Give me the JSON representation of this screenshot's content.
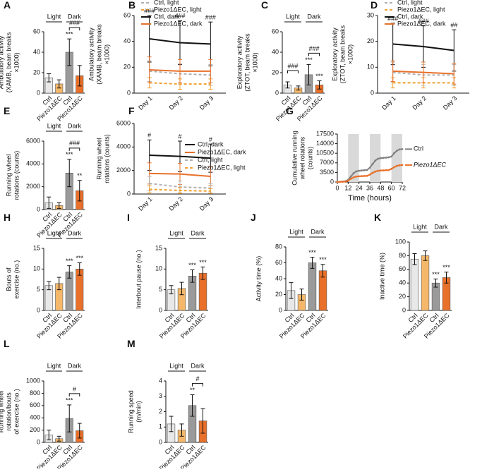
{
  "chart_data": [
    {
      "panel": "A",
      "type": "bar",
      "ylabel": [
        "Ambulatory activity",
        "(XAMB, beam breaks",
        "×1000)"
      ],
      "ylim": [
        0,
        60
      ],
      "yticks": [
        0,
        20,
        40,
        60
      ],
      "groups": [
        "Light",
        "Dark"
      ],
      "categories": [
        "Ctrl",
        "Piezo1ΔEC",
        "Ctrl",
        "Piezo1ΔEC"
      ],
      "values": [
        15,
        9,
        40,
        17
      ],
      "errors": [
        4,
        4,
        13,
        10
      ],
      "colors": [
        "#e8e8e8",
        "#f5b86a",
        "#9a9a9a",
        "#e8702a"
      ],
      "stars": [
        null,
        null,
        "***",
        null
      ],
      "dark_compare": "###"
    },
    {
      "panel": "B",
      "type": "line",
      "ylabel": [
        "Ambulatory activity",
        "(XAMB, beam breaks",
        "×1000)"
      ],
      "ylim": [
        0,
        60
      ],
      "yticks": [
        0,
        20,
        40,
        60
      ],
      "categories": [
        "Day 1",
        "Day 2",
        "Day 3"
      ],
      "legend": "top",
      "day_marks": [
        "###",
        "###",
        "###"
      ],
      "series": [
        {
          "name": "Ctrl, light",
          "color": "#b0b0b0",
          "dashed": true,
          "values": [
            17,
            15,
            14
          ],
          "errors": [
            8,
            8,
            8
          ]
        },
        {
          "name": "Piezo1ΔEC, light",
          "color": "#f0a030",
          "dashed": true,
          "values": [
            8,
            7,
            7
          ],
          "errors": [
            4,
            4,
            4
          ]
        },
        {
          "name": "Ctrl, dark",
          "color": "#111111",
          "dashed": false,
          "values": [
            42,
            39,
            38
          ],
          "errors": [
            18,
            17,
            17
          ]
        },
        {
          "name": "Piezo1ΔEC, dark",
          "color": "#e8702a",
          "dashed": false,
          "values": [
            18,
            17,
            17
          ],
          "errors": [
            10,
            9,
            9
          ]
        }
      ]
    },
    {
      "panel": "C",
      "type": "bar",
      "ylabel": [
        "Exploratory activity",
        "(ZTOT, beam breaks",
        "×1000)"
      ],
      "ylim": [
        0,
        60
      ],
      "yticks": [
        0,
        20,
        40,
        60
      ],
      "groups": [
        "Light",
        "Dark"
      ],
      "categories": [
        "Ctrl",
        "Piezo1ΔEC",
        "Ctrl",
        "Piezo1ΔEC"
      ],
      "values": [
        8,
        5,
        18,
        8
      ],
      "errors": [
        3,
        2,
        10,
        4
      ],
      "colors": [
        "#e8e8e8",
        "#f5b86a",
        "#9a9a9a",
        "#e8702a"
      ],
      "stars": [
        null,
        null,
        "***",
        "***"
      ],
      "light_compare": "###",
      "dark_compare": "###"
    },
    {
      "panel": "D",
      "type": "line",
      "ylabel": [
        "Exploratory activity",
        "(ZTOT, beam breaks",
        "×1000)"
      ],
      "ylim": [
        0,
        30
      ],
      "yticks": [
        0,
        10,
        20,
        30
      ],
      "categories": [
        "Day 1",
        "Day 2",
        "Day 3"
      ],
      "legend": "top",
      "day_marks": [
        "###",
        "###",
        "##"
      ],
      "series": [
        {
          "name": "Ctrl, light",
          "color": "#b0b0b0",
          "dashed": true,
          "values": [
            8,
            7,
            7
          ],
          "errors": [
            4,
            4,
            4
          ]
        },
        {
          "name": "Piezo1ΔEC, light",
          "color": "#f0a030",
          "dashed": true,
          "values": [
            4,
            4,
            4
          ],
          "errors": [
            2,
            2,
            2
          ]
        },
        {
          "name": "Ctrl, dark",
          "color": "#111111",
          "dashed": false,
          "values": [
            19,
            18,
            16.5
          ],
          "errors": [
            8,
            8,
            8
          ]
        },
        {
          "name": "Piezo1ΔEC, dark",
          "color": "#e8702a",
          "dashed": false,
          "values": [
            8.5,
            8,
            7.5
          ],
          "errors": [
            4,
            4,
            4
          ]
        }
      ]
    },
    {
      "panel": "E",
      "type": "bar",
      "ylabel": [
        "Running wheel",
        "rotations (counts)"
      ],
      "ylim": [
        0,
        6000
      ],
      "yticks": [
        0,
        2000,
        4000,
        6000
      ],
      "groups": [
        "Light",
        "Dark"
      ],
      "categories": [
        "Ctrl",
        "Piezo1ΔEC",
        "Ctrl",
        "Piezo1ΔEC"
      ],
      "values": [
        600,
        350,
        3200,
        1650
      ],
      "errors": [
        500,
        250,
        1200,
        900
      ],
      "colors": [
        "#e8e8e8",
        "#f5b86a",
        "#9a9a9a",
        "#e8702a"
      ],
      "stars": [
        null,
        null,
        "***",
        "**"
      ],
      "dark_compare": "###"
    },
    {
      "panel": "F",
      "type": "line",
      "ylabel": [
        "Running wheel",
        "rotations (counts)"
      ],
      "ylim": [
        0,
        6000
      ],
      "yticks": [
        0,
        2000,
        4000,
        6000
      ],
      "categories": [
        "Day 1",
        "Day 2",
        "Day 3"
      ],
      "legend": "right",
      "day_marks": [
        "#",
        "#",
        "#"
      ],
      "series": [
        {
          "name": "Ctrl, dark",
          "color": "#111111",
          "dashed": false,
          "values": [
            3300,
            3200,
            3050
          ],
          "errors": [
            1300,
            1300,
            1200
          ]
        },
        {
          "name": "Piezo1ΔEC, dark",
          "color": "#e8702a",
          "dashed": false,
          "values": [
            1750,
            1700,
            1500
          ],
          "errors": [
            900,
            900,
            800
          ]
        },
        {
          "name": "Ctrl, light",
          "color": "#b0b0b0",
          "dashed": true,
          "values": [
            900,
            600,
            500
          ],
          "errors": [
            600,
            500,
            400
          ]
        },
        {
          "name": "Piezo1ΔEC, light",
          "color": "#f0a030",
          "dashed": true,
          "values": [
            400,
            300,
            250
          ],
          "errors": [
            300,
            250,
            200
          ]
        }
      ]
    },
    {
      "panel": "G",
      "type": "cumulative",
      "ylabel": [
        "Cumulative running",
        "wheel rotations",
        "(counts)"
      ],
      "xlabel": "Time (hours)",
      "ylim": [
        0,
        17500
      ],
      "yticks": [
        0,
        3500,
        7000,
        10500,
        14000,
        17500
      ],
      "xlim": [
        0,
        72
      ],
      "xticks": [
        0,
        12,
        24,
        36,
        48,
        60,
        72
      ],
      "shaded": [
        [
          12,
          24
        ],
        [
          36,
          48
        ],
        [
          60,
          72
        ]
      ],
      "legend": "inline",
      "x": [
        0,
        3,
        6,
        9,
        12,
        15,
        18,
        21,
        24,
        27,
        30,
        33,
        36,
        39,
        42,
        45,
        48,
        51,
        54,
        57,
        60,
        63,
        66,
        69,
        72
      ],
      "series": [
        {
          "name": "Ctrl",
          "color": "#808080",
          "values": [
            0,
            100,
            200,
            300,
            800,
            2000,
            3200,
            3900,
            4100,
            4200,
            4300,
            4400,
            5200,
            6500,
            7800,
            8500,
            8700,
            8800,
            8900,
            9000,
            9300,
            10500,
            11400,
            11900,
            12000
          ]
        },
        {
          "name": "Piezo1ΔEC",
          "color": "#e8702a",
          "values": [
            0,
            50,
            100,
            150,
            500,
            1200,
            1700,
            2000,
            2100,
            2150,
            2200,
            2250,
            2700,
            3300,
            3800,
            4100,
            4200,
            4250,
            4300,
            4350,
            4800,
            5400,
            5900,
            6100,
            6200
          ]
        }
      ]
    },
    {
      "panel": "H",
      "type": "bar",
      "ylabel": [
        "Bouts of",
        "exercise (no.)"
      ],
      "ylim": [
        0,
        15
      ],
      "yticks": [
        0,
        5,
        10,
        15
      ],
      "groups": [
        "Light",
        "Dark"
      ],
      "categories": [
        "Ctrl",
        "Piezo1ΔEC",
        "Ctrl",
        "Piezo1ΔEC"
      ],
      "values": [
        6,
        6.5,
        9.3,
        10
      ],
      "errors": [
        1,
        1.5,
        1.5,
        1.5
      ],
      "colors": [
        "#e8e8e8",
        "#f5b86a",
        "#9a9a9a",
        "#e8702a"
      ],
      "stars": [
        null,
        null,
        "***",
        "***"
      ]
    },
    {
      "panel": "I",
      "type": "bar",
      "ylabel": [
        "Interbout pause (no.)"
      ],
      "ylim": [
        0,
        15
      ],
      "yticks": [
        0,
        5,
        10,
        15
      ],
      "groups": [
        "Light",
        "Dark"
      ],
      "categories": [
        "Ctrl",
        "Piezo1ΔEC",
        "Ctrl",
        "Piezo1ΔEC"
      ],
      "values": [
        5,
        5.3,
        8.3,
        9
      ],
      "errors": [
        1,
        1.5,
        1.5,
        1.5
      ],
      "colors": [
        "#e8e8e8",
        "#f5b86a",
        "#9a9a9a",
        "#e8702a"
      ],
      "stars": [
        null,
        null,
        "***",
        "***"
      ]
    },
    {
      "panel": "J",
      "type": "bar",
      "ylabel": [
        "Activity time (%)"
      ],
      "ylim": [
        0,
        80
      ],
      "yticks": [
        0,
        20,
        40,
        60,
        80
      ],
      "groups": [
        "Light",
        "Dark"
      ],
      "categories": [
        "Ctrl",
        "Piezo1ΔEC",
        "Ctrl",
        "Piezo1ΔEC"
      ],
      "values": [
        25,
        20,
        60,
        50
      ],
      "errors": [
        10,
        7,
        7,
        8
      ],
      "colors": [
        "#e8e8e8",
        "#f5b86a",
        "#9a9a9a",
        "#e8702a"
      ],
      "stars": [
        null,
        null,
        "***",
        "***"
      ]
    },
    {
      "panel": "K",
      "type": "bar",
      "ylabel": [
        "Inactive time (%)"
      ],
      "ylim": [
        0,
        100
      ],
      "yticks": [
        0,
        20,
        40,
        60,
        80,
        100
      ],
      "groups": [
        "Light",
        "Dark"
      ],
      "categories": [
        "Ctrl",
        "Piezo1ΔEC",
        "Ctrl",
        "Piezo1ΔEC"
      ],
      "values": [
        75,
        80,
        40,
        48
      ],
      "errors": [
        8,
        7,
        6,
        8
      ],
      "colors": [
        "#e8e8e8",
        "#f5b86a",
        "#9a9a9a",
        "#e8702a"
      ],
      "stars": [
        null,
        null,
        "***",
        "***"
      ]
    },
    {
      "panel": "L",
      "type": "bar",
      "ylabel": [
        "Running wheel",
        "rotation/bouts",
        "of exercise (no.)"
      ],
      "ylim": [
        0,
        1000
      ],
      "yticks": [
        0,
        200,
        400,
        600,
        800,
        1000
      ],
      "groups": [
        "Light",
        "Dark"
      ],
      "categories": [
        "Ctrl",
        "Piezo1ΔEC",
        "Ctrl",
        "Piezo1ΔEC"
      ],
      "values": [
        120,
        60,
        390,
        190
      ],
      "errors": [
        80,
        40,
        220,
        120
      ],
      "colors": [
        "#e8e8e8",
        "#f5b86a",
        "#9a9a9a",
        "#e8702a"
      ],
      "stars": [
        null,
        null,
        "***",
        null
      ],
      "dark_compare": "#"
    },
    {
      "panel": "M",
      "type": "bar",
      "ylabel": [
        "Running speed",
        "(m/min)"
      ],
      "ylim": [
        0,
        4
      ],
      "yticks": [
        0,
        1,
        2,
        3,
        4
      ],
      "groups": [
        "Light",
        "Dark"
      ],
      "categories": [
        "Ctrl",
        "Piezo1ΔEC",
        "Ctrl",
        "Piezo1ΔEC"
      ],
      "values": [
        1.2,
        0.8,
        2.4,
        1.4
      ],
      "errors": [
        0.5,
        0.4,
        0.7,
        0.8
      ],
      "colors": [
        "#e8e8e8",
        "#f5b86a",
        "#9a9a9a",
        "#e8702a"
      ],
      "stars": [
        null,
        null,
        "**",
        null
      ],
      "dark_compare": "#"
    }
  ]
}
